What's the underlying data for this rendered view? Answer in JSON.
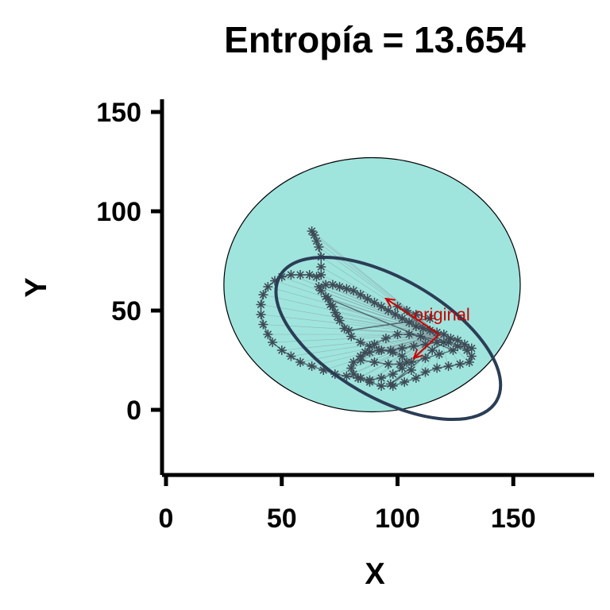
{
  "chart_data": {
    "type": "scatter",
    "title": "Entropía = 13.654",
    "xlabel": "X",
    "ylabel": "Y",
    "xlim": [
      -2,
      185
    ],
    "ylim": [
      -32,
      155
    ],
    "x_ticks": [
      "0",
      "50",
      "100",
      "150"
    ],
    "y_ticks": [
      "0",
      "50",
      "100",
      "150"
    ],
    "grid": false,
    "legend": "none",
    "colors": {
      "fill_ellipse": "#a0e4de",
      "ellipse_outline": "#2b3d55",
      "points": "#3d4a55",
      "links": "#7f8f95",
      "annotation": "#cc0000"
    },
    "fill_ellipse": {
      "cx": 89,
      "cy": 63,
      "rx": 64,
      "ry": 64,
      "angle": 0
    },
    "fitted_ellipse": {
      "cx": 96,
      "cy": 36,
      "rx": 54,
      "ry": 30,
      "angle": -30
    },
    "original_point": {
      "x": 118,
      "y": 38
    },
    "annotation": {
      "text": "original",
      "x": 107,
      "y": 45
    },
    "arrows": [
      {
        "from": [
          118,
          38
        ],
        "to": [
          95,
          56
        ]
      },
      {
        "from": [
          118,
          38
        ],
        "to": [
          107,
          26
        ]
      }
    ],
    "points": [
      [
        63,
        90
      ],
      [
        64,
        88
      ],
      [
        65,
        85
      ],
      [
        66,
        82
      ],
      [
        67,
        77
      ],
      [
        67,
        72
      ],
      [
        67,
        68
      ],
      [
        65,
        67
      ],
      [
        62,
        68
      ],
      [
        58,
        68
      ],
      [
        54,
        68
      ],
      [
        50,
        67
      ],
      [
        47,
        65
      ],
      [
        44,
        62
      ],
      [
        42,
        58
      ],
      [
        41,
        53
      ],
      [
        41,
        48
      ],
      [
        42,
        43
      ],
      [
        44,
        38
      ],
      [
        46,
        34
      ],
      [
        50,
        30
      ],
      [
        54,
        27
      ],
      [
        58,
        24
      ],
      [
        63,
        22
      ],
      [
        68,
        20
      ],
      [
        73,
        18
      ],
      [
        78,
        17
      ],
      [
        83,
        16
      ],
      [
        88,
        14
      ],
      [
        93,
        12
      ],
      [
        98,
        12
      ],
      [
        103,
        14
      ],
      [
        108,
        16
      ],
      [
        112,
        19
      ],
      [
        117,
        21
      ],
      [
        122,
        22
      ],
      [
        127,
        23
      ],
      [
        131,
        24
      ],
      [
        132,
        27
      ],
      [
        130,
        30
      ],
      [
        126,
        32
      ],
      [
        122,
        34
      ],
      [
        117,
        34
      ],
      [
        112,
        33
      ],
      [
        107,
        32
      ],
      [
        102,
        31
      ],
      [
        97,
        30
      ],
      [
        92,
        30
      ],
      [
        88,
        29
      ],
      [
        84,
        27
      ],
      [
        81,
        24
      ],
      [
        80,
        21
      ],
      [
        81,
        18
      ],
      [
        84,
        16
      ],
      [
        88,
        15
      ],
      [
        93,
        16
      ],
      [
        98,
        18
      ],
      [
        102,
        21
      ],
      [
        104,
        24
      ],
      [
        102,
        27
      ],
      [
        98,
        29
      ],
      [
        93,
        30
      ],
      [
        88,
        32
      ],
      [
        84,
        34
      ],
      [
        80,
        37
      ],
      [
        77,
        41
      ],
      [
        75,
        45
      ],
      [
        73,
        49
      ],
      [
        71,
        53
      ],
      [
        69,
        57
      ],
      [
        67,
        60
      ],
      [
        66,
        62
      ],
      [
        69,
        63
      ],
      [
        72,
        63
      ],
      [
        75,
        62
      ],
      [
        78,
        61
      ],
      [
        81,
        60
      ],
      [
        84,
        58
      ],
      [
        87,
        56
      ],
      [
        90,
        54
      ],
      [
        93,
        52
      ],
      [
        96,
        50
      ],
      [
        99,
        48
      ],
      [
        102,
        46
      ],
      [
        105,
        44
      ],
      [
        108,
        42
      ],
      [
        111,
        41
      ],
      [
        114,
        40
      ],
      [
        117,
        39
      ],
      [
        120,
        38
      ],
      [
        123,
        36
      ],
      [
        126,
        35
      ],
      [
        129,
        33
      ],
      [
        132,
        31
      ],
      [
        110,
        37
      ],
      [
        105,
        38
      ],
      [
        100,
        38
      ],
      [
        95,
        36
      ],
      [
        90,
        33
      ],
      [
        86,
        29
      ],
      [
        84,
        25
      ],
      [
        90,
        24
      ],
      [
        96,
        23
      ],
      [
        101,
        23
      ],
      [
        106,
        24
      ],
      [
        112,
        26
      ],
      [
        118,
        28
      ],
      [
        124,
        30
      ],
      [
        70,
        56
      ],
      [
        72,
        52
      ],
      [
        74,
        47
      ],
      [
        79,
        40
      ],
      [
        114,
        46
      ],
      [
        108,
        48
      ],
      [
        104,
        50
      ],
      [
        100,
        52
      ],
      [
        120,
        34
      ],
      [
        115,
        30
      ],
      [
        97,
        13
      ],
      [
        106,
        20
      ]
    ]
  }
}
